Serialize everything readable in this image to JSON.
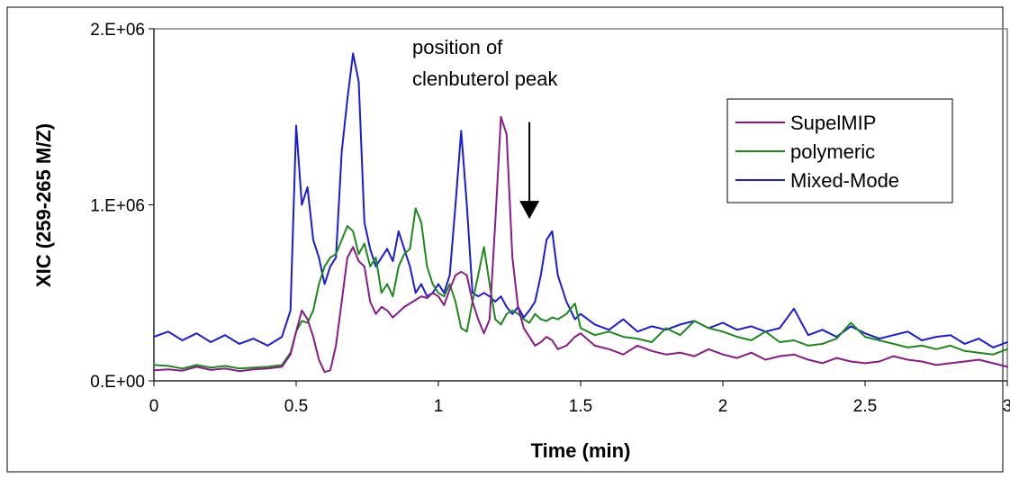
{
  "chart_data": {
    "type": "line",
    "title": "",
    "xlabel": "Time (min)",
    "ylabel": "XIC (259-265 M/Z)",
    "xlim": [
      0,
      3
    ],
    "ylim": [
      0,
      2000000
    ],
    "x_ticks": [
      {
        "value": 0,
        "label": "0"
      },
      {
        "value": 0.5,
        "label": "0.5"
      },
      {
        "value": 1,
        "label": "1"
      },
      {
        "value": 1.5,
        "label": "1.5"
      },
      {
        "value": 2,
        "label": "2"
      },
      {
        "value": 2.5,
        "label": "2.5"
      },
      {
        "value": 3,
        "label": "3"
      }
    ],
    "y_ticks": [
      {
        "value": 0,
        "label": "0.E+00"
      },
      {
        "value": 1000000,
        "label": "1.E+06"
      },
      {
        "value": 2000000,
        "label": "2.E+06"
      }
    ],
    "grid": false,
    "legend_position": "top-right",
    "annotation": {
      "lines": [
        "position of",
        "clenbuterol peak"
      ],
      "arrow_x": 1.32,
      "arrow_from": 1470000,
      "arrow_to": 920000
    },
    "series": [
      {
        "name": "SupelMIP",
        "color": "#8b1a89",
        "x": [
          0,
          0.05,
          0.1,
          0.15,
          0.2,
          0.25,
          0.3,
          0.35,
          0.4,
          0.45,
          0.48,
          0.5,
          0.52,
          0.54,
          0.56,
          0.58,
          0.6,
          0.62,
          0.64,
          0.66,
          0.68,
          0.7,
          0.72,
          0.74,
          0.76,
          0.78,
          0.8,
          0.82,
          0.84,
          0.86,
          0.88,
          0.9,
          0.92,
          0.94,
          0.96,
          0.98,
          1.0,
          1.02,
          1.04,
          1.06,
          1.08,
          1.1,
          1.12,
          1.14,
          1.16,
          1.18,
          1.2,
          1.22,
          1.24,
          1.26,
          1.28,
          1.3,
          1.32,
          1.34,
          1.36,
          1.38,
          1.4,
          1.42,
          1.45,
          1.48,
          1.5,
          1.55,
          1.6,
          1.65,
          1.7,
          1.75,
          1.8,
          1.85,
          1.9,
          1.95,
          2.0,
          2.05,
          2.1,
          2.15,
          2.2,
          2.25,
          2.3,
          2.35,
          2.4,
          2.45,
          2.5,
          2.55,
          2.6,
          2.65,
          2.7,
          2.75,
          2.8,
          2.85,
          2.9,
          2.95,
          3.0
        ],
        "values": [
          60000,
          65000,
          58000,
          80000,
          62000,
          70000,
          55000,
          65000,
          70000,
          80000,
          150000,
          280000,
          400000,
          350000,
          250000,
          120000,
          50000,
          60000,
          200000,
          450000,
          700000,
          760000,
          680000,
          650000,
          450000,
          380000,
          420000,
          400000,
          360000,
          390000,
          420000,
          440000,
          460000,
          480000,
          470000,
          500000,
          480000,
          430000,
          520000,
          600000,
          620000,
          600000,
          450000,
          350000,
          270000,
          350000,
          900000,
          1500000,
          1400000,
          700000,
          420000,
          300000,
          250000,
          200000,
          220000,
          250000,
          230000,
          180000,
          200000,
          250000,
          270000,
          200000,
          180000,
          150000,
          200000,
          170000,
          150000,
          160000,
          140000,
          180000,
          150000,
          130000,
          160000,
          120000,
          140000,
          150000,
          120000,
          100000,
          130000,
          110000,
          100000,
          110000,
          140000,
          120000,
          110000,
          90000,
          100000,
          110000,
          120000,
          100000,
          80000
        ]
      },
      {
        "name": "polymeric",
        "color": "#1b8a1b",
        "x": [
          0,
          0.05,
          0.1,
          0.15,
          0.2,
          0.25,
          0.3,
          0.35,
          0.4,
          0.45,
          0.48,
          0.5,
          0.52,
          0.54,
          0.56,
          0.58,
          0.6,
          0.62,
          0.64,
          0.66,
          0.68,
          0.7,
          0.72,
          0.74,
          0.76,
          0.78,
          0.8,
          0.82,
          0.84,
          0.86,
          0.88,
          0.9,
          0.92,
          0.94,
          0.96,
          0.98,
          1.0,
          1.02,
          1.04,
          1.06,
          1.08,
          1.1,
          1.12,
          1.14,
          1.16,
          1.18,
          1.2,
          1.22,
          1.24,
          1.26,
          1.28,
          1.3,
          1.32,
          1.34,
          1.36,
          1.38,
          1.4,
          1.42,
          1.45,
          1.48,
          1.5,
          1.55,
          1.6,
          1.65,
          1.7,
          1.75,
          1.8,
          1.85,
          1.9,
          1.95,
          2.0,
          2.05,
          2.1,
          2.15,
          2.2,
          2.25,
          2.3,
          2.35,
          2.4,
          2.45,
          2.5,
          2.55,
          2.6,
          2.65,
          2.7,
          2.75,
          2.8,
          2.85,
          2.9,
          2.95,
          3.0
        ],
        "values": [
          90000,
          85000,
          70000,
          90000,
          75000,
          85000,
          70000,
          75000,
          80000,
          90000,
          160000,
          280000,
          340000,
          330000,
          400000,
          550000,
          650000,
          700000,
          720000,
          800000,
          880000,
          850000,
          720000,
          780000,
          650000,
          700000,
          500000,
          550000,
          480000,
          650000,
          720000,
          750000,
          980000,
          900000,
          650000,
          550000,
          500000,
          480000,
          550000,
          450000,
          300000,
          280000,
          450000,
          600000,
          760000,
          550000,
          350000,
          320000,
          380000,
          400000,
          380000,
          350000,
          330000,
          380000,
          350000,
          340000,
          360000,
          350000,
          380000,
          440000,
          300000,
          260000,
          280000,
          250000,
          240000,
          220000,
          300000,
          260000,
          340000,
          300000,
          280000,
          250000,
          230000,
          280000,
          220000,
          230000,
          200000,
          210000,
          240000,
          330000,
          250000,
          230000,
          210000,
          190000,
          200000,
          180000,
          200000,
          170000,
          160000,
          150000,
          180000
        ]
      },
      {
        "name": "Mixed-Mode",
        "color": "#1a1ae0",
        "x": [
          0,
          0.05,
          0.1,
          0.15,
          0.2,
          0.25,
          0.3,
          0.35,
          0.4,
          0.45,
          0.48,
          0.5,
          0.52,
          0.54,
          0.56,
          0.58,
          0.6,
          0.62,
          0.64,
          0.66,
          0.68,
          0.7,
          0.72,
          0.74,
          0.76,
          0.78,
          0.8,
          0.82,
          0.84,
          0.86,
          0.88,
          0.9,
          0.92,
          0.94,
          0.96,
          0.98,
          1.0,
          1.02,
          1.04,
          1.06,
          1.08,
          1.1,
          1.12,
          1.14,
          1.16,
          1.18,
          1.2,
          1.22,
          1.24,
          1.26,
          1.28,
          1.3,
          1.32,
          1.34,
          1.36,
          1.38,
          1.4,
          1.42,
          1.45,
          1.48,
          1.5,
          1.55,
          1.6,
          1.65,
          1.7,
          1.75,
          1.8,
          1.85,
          1.9,
          1.95,
          2.0,
          2.05,
          2.1,
          2.15,
          2.2,
          2.25,
          2.3,
          2.35,
          2.4,
          2.45,
          2.5,
          2.55,
          2.6,
          2.65,
          2.7,
          2.75,
          2.8,
          2.85,
          2.9,
          2.95,
          3.0
        ],
        "values": [
          250000,
          280000,
          230000,
          270000,
          220000,
          260000,
          210000,
          240000,
          200000,
          250000,
          400000,
          1450000,
          1000000,
          1100000,
          800000,
          700000,
          550000,
          650000,
          700000,
          1300000,
          1600000,
          1860000,
          1700000,
          900000,
          750000,
          650000,
          700000,
          750000,
          680000,
          850000,
          750000,
          650000,
          500000,
          550000,
          480000,
          500000,
          550000,
          500000,
          600000,
          1000000,
          1420000,
          1000000,
          500000,
          480000,
          500000,
          480000,
          450000,
          480000,
          420000,
          380000,
          420000,
          360000,
          400000,
          450000,
          600000,
          800000,
          850000,
          600000,
          450000,
          350000,
          380000,
          320000,
          290000,
          350000,
          280000,
          310000,
          290000,
          320000,
          340000,
          300000,
          330000,
          290000,
          310000,
          280000,
          300000,
          410000,
          260000,
          290000,
          250000,
          310000,
          270000,
          240000,
          260000,
          280000,
          230000,
          250000,
          260000,
          210000,
          240000,
          190000,
          220000
        ]
      }
    ]
  }
}
